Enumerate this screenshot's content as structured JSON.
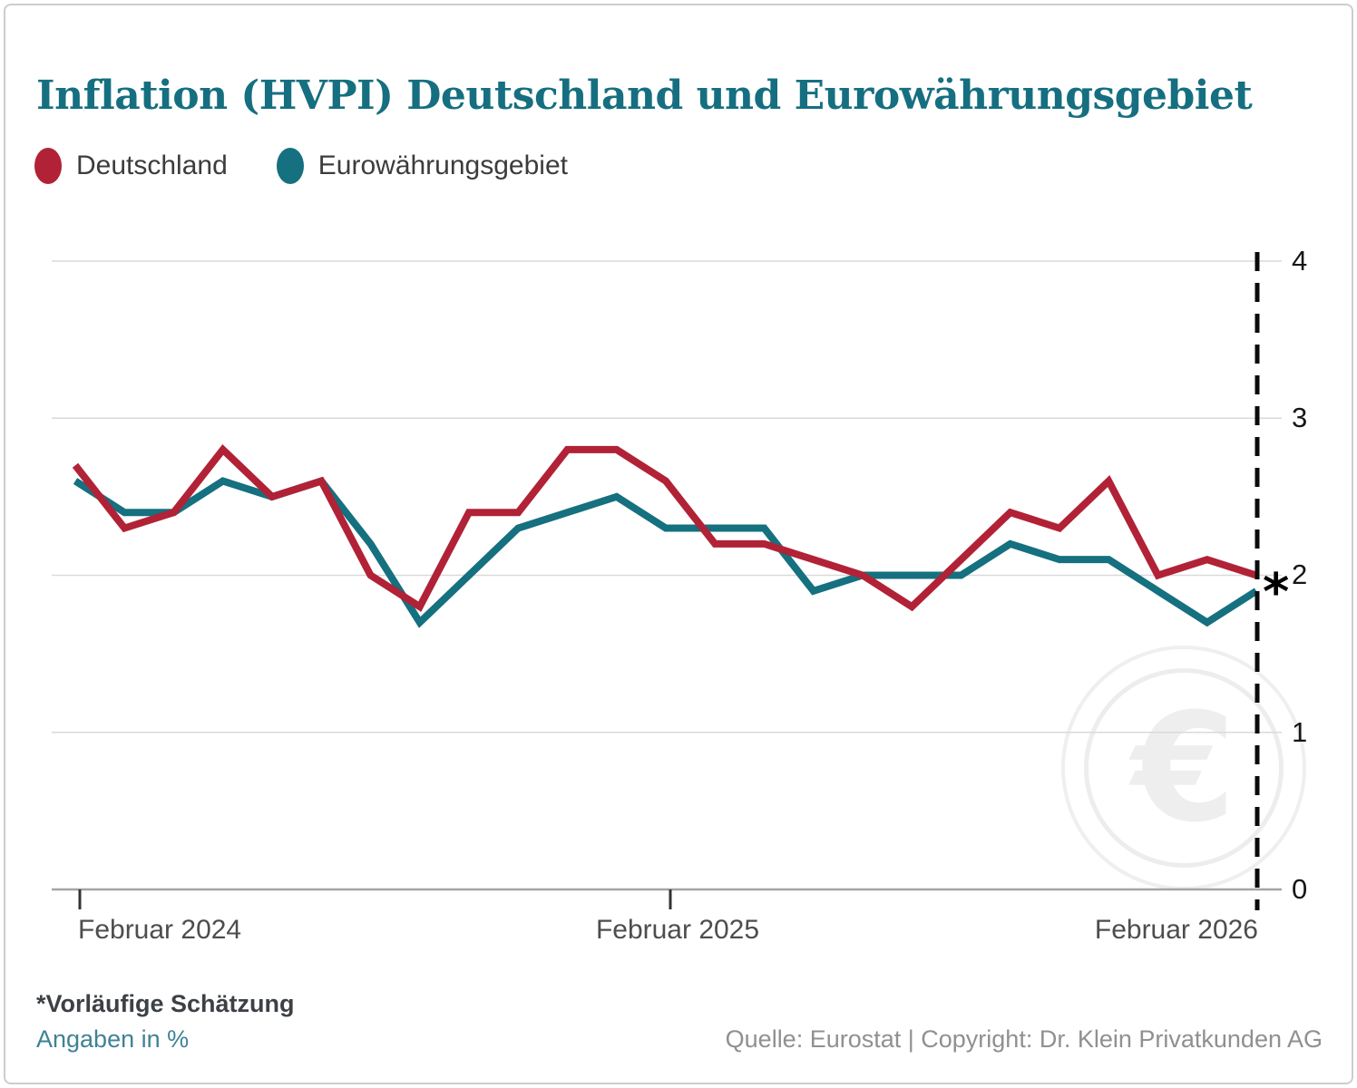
{
  "title": "Inflation (HVPI) Deutschland und Eurowährungsgebiet",
  "legend": [
    {
      "label": "Deutschland",
      "color": "#b12236"
    },
    {
      "label": "Eurowährungsgebiet",
      "color": "#15707f"
    }
  ],
  "chart_data": {
    "type": "line",
    "title": "Inflation (HVPI) Deutschland und Eurowährungsgebiet",
    "unit": "%",
    "grid": "horizontal",
    "legend_position": "top-left",
    "x": [
      "2024-02",
      "2024-03",
      "2024-04",
      "2024-05",
      "2024-06",
      "2024-07",
      "2024-08",
      "2024-09",
      "2024-10",
      "2024-11",
      "2024-12",
      "2025-01",
      "2025-02",
      "2025-03",
      "2025-04",
      "2025-05",
      "2025-06",
      "2025-07",
      "2025-08",
      "2025-09",
      "2025-10",
      "2025-11",
      "2025-12",
      "2026-01",
      "2026-02"
    ],
    "x_axis": {
      "ticks": [
        {
          "label": "Februar 2024",
          "month_index": 0
        },
        {
          "label": "Februar 2025",
          "month_index": 12
        },
        {
          "label": "Februar 2026",
          "month_index": 24
        }
      ]
    },
    "y_axis": {
      "ticks": [
        4,
        3,
        2,
        1,
        0
      ],
      "range": [
        0,
        4
      ]
    },
    "series": [
      {
        "name": "Eurowährungsgebiet",
        "color": "#15707f",
        "values": [
          2.6,
          2.4,
          2.4,
          2.6,
          2.5,
          2.6,
          2.2,
          1.7,
          2.0,
          2.3,
          2.4,
          2.5,
          2.3,
          2.3,
          2.3,
          1.9,
          2.0,
          2.0,
          2.0,
          2.2,
          2.1,
          2.1,
          1.9,
          1.7,
          1.9
        ]
      },
      {
        "name": "Deutschland",
        "color": "#b12236",
        "values": [
          2.7,
          2.3,
          2.4,
          2.8,
          2.5,
          2.6,
          2.0,
          1.8,
          2.4,
          2.4,
          2.8,
          2.8,
          2.6,
          2.2,
          2.2,
          2.1,
          2.0,
          1.8,
          2.1,
          2.4,
          2.3,
          2.6,
          2.0,
          2.1,
          2.0
        ]
      }
    ],
    "annotation": {
      "symbol": "*",
      "at_month_index": 24,
      "meaning": "Vorläufige Schätzung"
    },
    "forecast_divider": {
      "style": "dashed",
      "at_month_index": 24
    }
  },
  "watermark": {
    "symbol": "€"
  },
  "footnotes": {
    "estimate": "*Vorläufige Schätzung",
    "unit_note": "Angaben in %",
    "source": "Quelle: Eurostat | Copyright: Dr. Klein Privatkunden AG"
  }
}
